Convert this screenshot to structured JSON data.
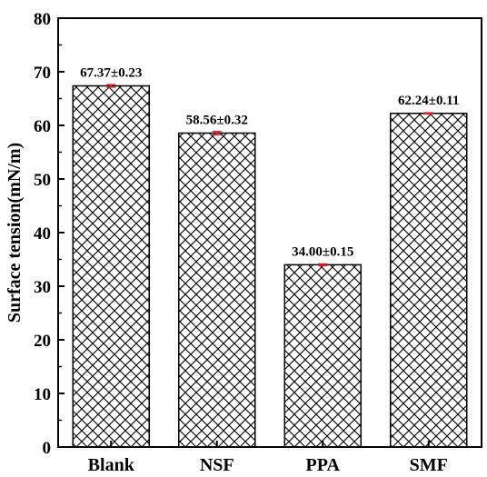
{
  "chart_data": {
    "type": "bar",
    "categories": [
      "Blank",
      "NSF",
      "PPA",
      "SMF"
    ],
    "values": [
      67.37,
      58.56,
      34.0,
      62.24
    ],
    "errors": [
      0.23,
      0.32,
      0.15,
      0.11
    ],
    "data_labels": [
      "67.37±0.23",
      "58.56±0.32",
      "34.00±0.15",
      "62.24±0.11"
    ],
    "ylabel": "Surface tension(mN/m)",
    "xlabel": "",
    "ylim": [
      0,
      80
    ],
    "yticks": [
      0,
      10,
      20,
      30,
      40,
      50,
      60,
      70,
      80
    ],
    "grid": false,
    "bar_fill": "crosshatch",
    "bar_color": "#000000",
    "error_bar_color": "#e8202a"
  }
}
